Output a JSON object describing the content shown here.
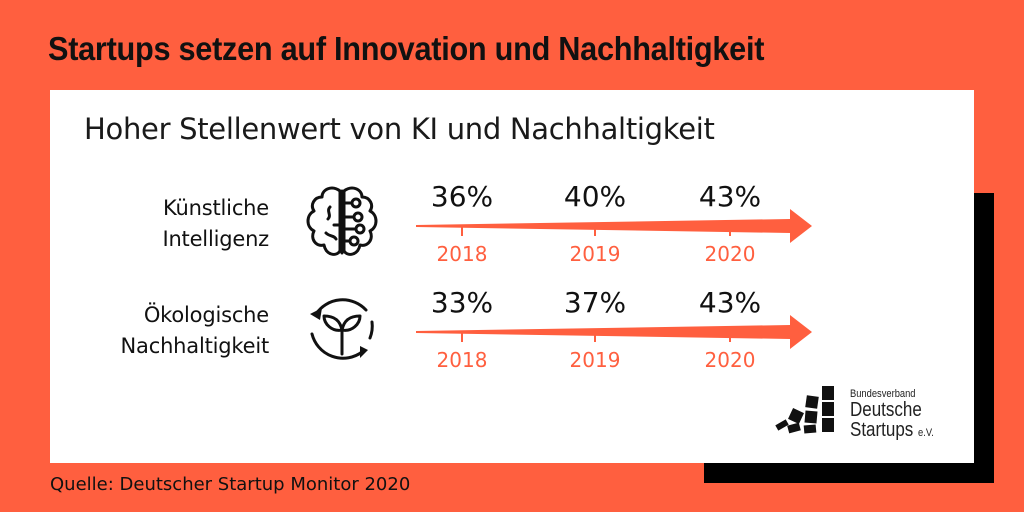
{
  "headline": "Startups setzen auf Innovation und Nachhaltigkeit",
  "source": "Quelle: Deutscher Startup Monitor 2020",
  "colors": {
    "background": "#FF5F3F",
    "accent": "#FF5F3F",
    "text": "#111111",
    "card": "#FFFFFF",
    "shadow": "#000000"
  },
  "logo": {
    "line1": "Bundesverband",
    "line2": "Deutsche",
    "line3": "Startups",
    "suffix": "e.V."
  },
  "chart_data": {
    "type": "table",
    "title": "Hoher Stellenwert von KI und Nachhaltigkeit",
    "categories": [
      "2018",
      "2019",
      "2020"
    ],
    "unit": "%",
    "series": [
      {
        "name_line1": "Künstliche",
        "name_line2": "Intelligenz",
        "name": "Künstliche Intelligenz",
        "icon": "brain-circuit-icon",
        "values": [
          36,
          40,
          43
        ],
        "labels": [
          "36%",
          "40%",
          "43%"
        ]
      },
      {
        "name_line1": "Ökologische",
        "name_line2": "Nachhaltigkeit",
        "name": "Ökologische Nachhaltigkeit",
        "icon": "recycle-sprout-icon",
        "values": [
          33,
          37,
          43
        ],
        "labels": [
          "33%",
          "37%",
          "43%"
        ]
      }
    ]
  }
}
